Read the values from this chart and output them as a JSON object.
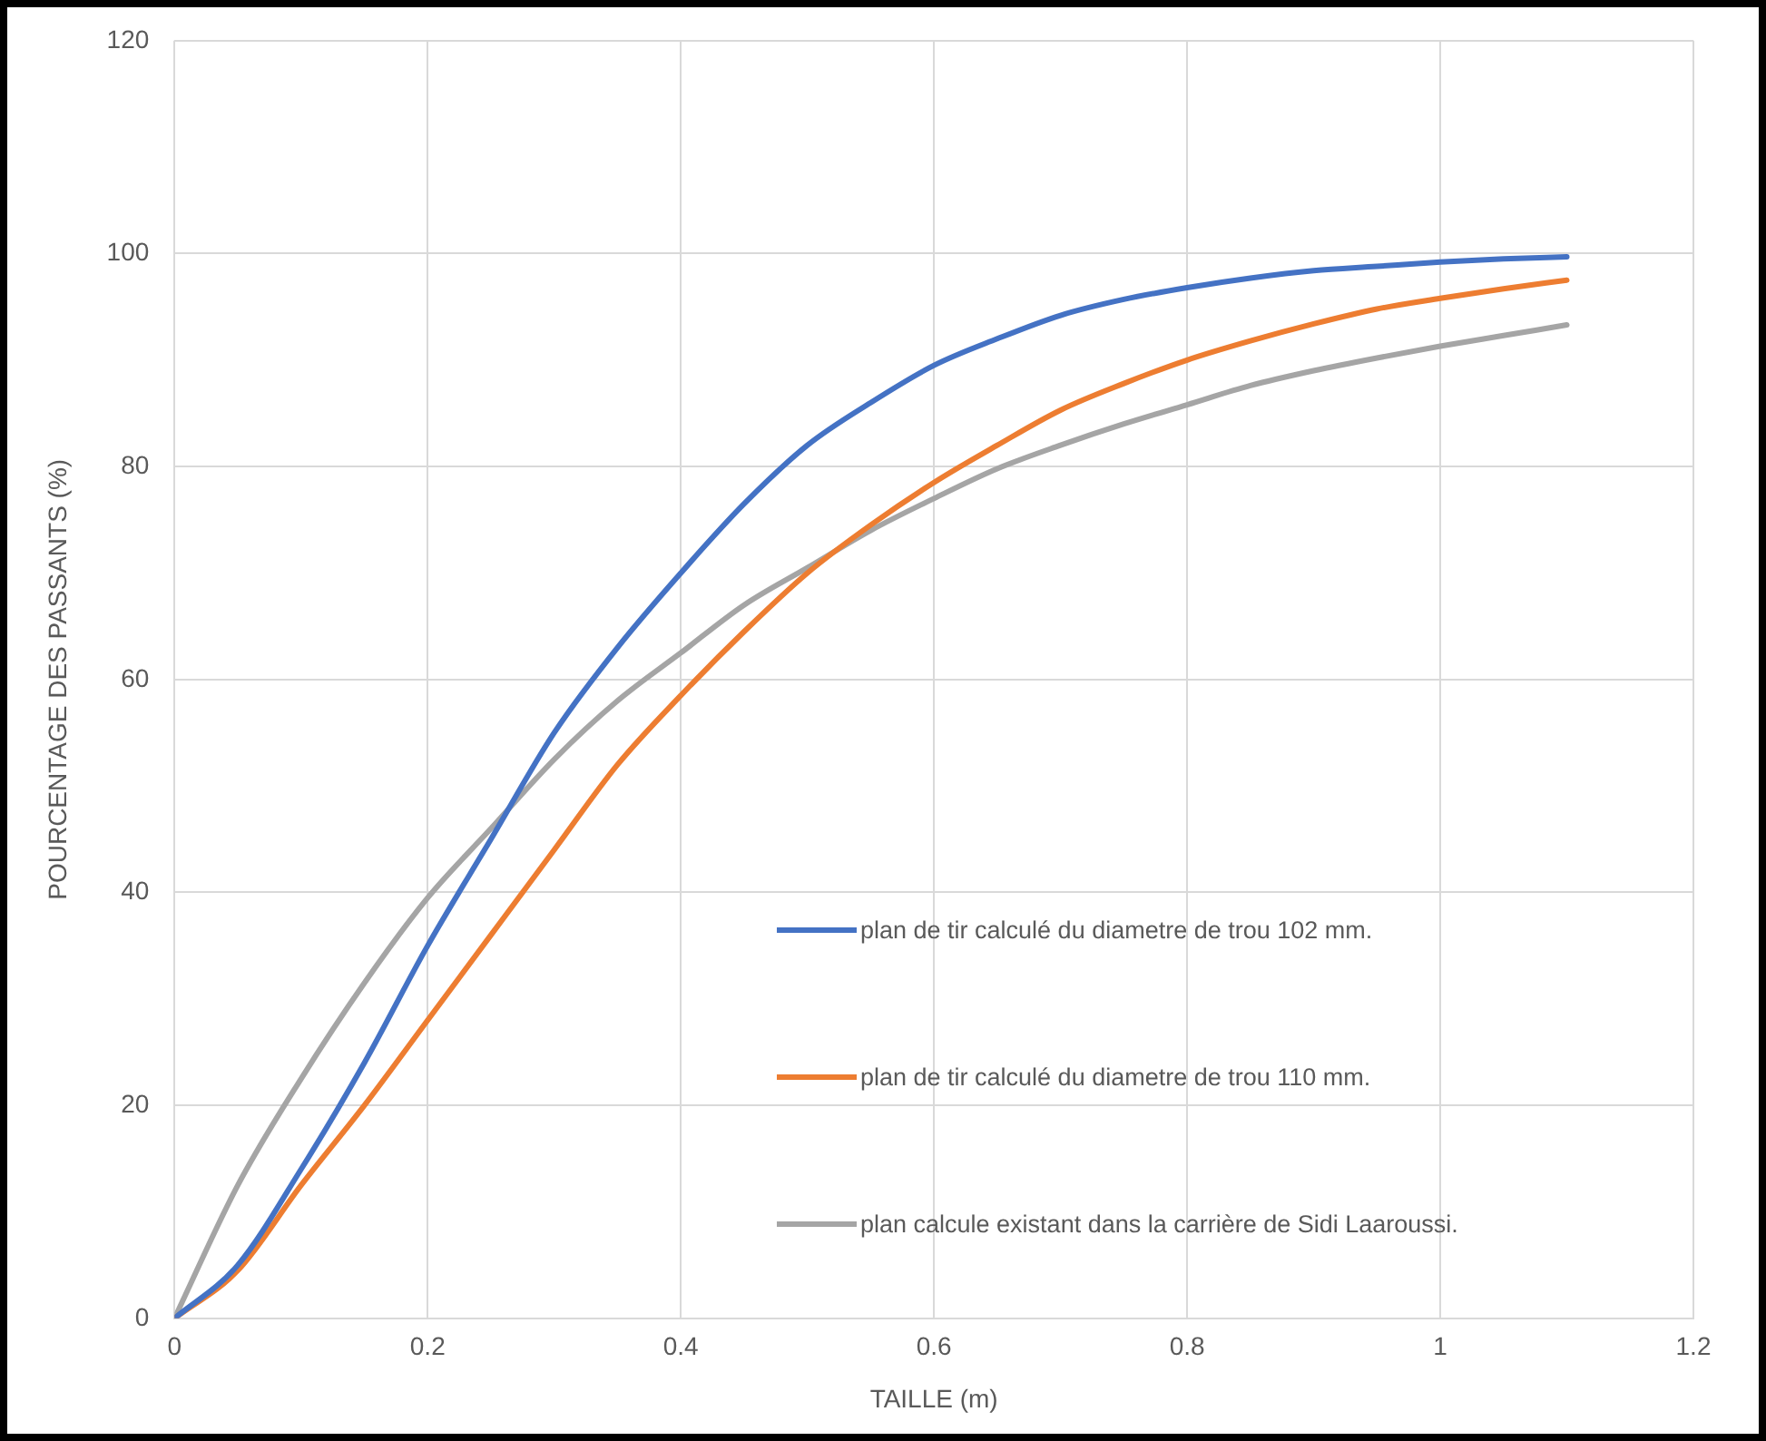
{
  "chart_data": {
    "type": "line",
    "xlabel": "TAILLE (m)",
    "ylabel": "POURCENTAGE DES PASSANTS (%)",
    "x": [
      0,
      0.05,
      0.1,
      0.15,
      0.2,
      0.25,
      0.3,
      0.35,
      0.4,
      0.45,
      0.5,
      0.55,
      0.6,
      0.65,
      0.7,
      0.75,
      0.8,
      0.85,
      0.9,
      0.95,
      1.0,
      1.05,
      1.1
    ],
    "series": [
      {
        "name": "plan de tir calculé du diametre de trou 102 mm.",
        "color": "#4472c4",
        "values": [
          0,
          5,
          14,
          24,
          35,
          45,
          55,
          63,
          70,
          76.5,
          82,
          86,
          89.5,
          92,
          94.2,
          95.7,
          96.8,
          97.7,
          98.4,
          98.8,
          99.2,
          99.5,
          99.7
        ]
      },
      {
        "name": "plan de tir calculé du diametre de trou 110 mm.",
        "color": "#ed7d31",
        "values": [
          0,
          4.5,
          12.5,
          20,
          28,
          36,
          44,
          52,
          58.5,
          64.5,
          70,
          74.5,
          78.5,
          82,
          85.3,
          87.8,
          90,
          91.8,
          93.4,
          94.8,
          95.8,
          96.7,
          97.5
        ]
      },
      {
        "name": "plan calcule existant dans la carrière de Sidi Laaroussi.",
        "color": "#a5a5a5",
        "values": [
          0,
          12.5,
          22.5,
          31.5,
          39.5,
          46,
          52.5,
          58,
          62.5,
          67,
          70.5,
          74,
          77,
          79.8,
          82,
          84,
          85.8,
          87.6,
          89,
          90.2,
          91.3,
          92.3,
          93.3
        ]
      }
    ],
    "xlim": [
      0,
      1.2
    ],
    "xticks": [
      0,
      0.2,
      0.4,
      0.6,
      0.8,
      1,
      1.2
    ],
    "ylim": [
      0,
      120
    ],
    "yticks": [
      0,
      20,
      40,
      60,
      80,
      100,
      120
    ],
    "grid": true,
    "legend": "right",
    "marker": "none",
    "line_style": "solid"
  }
}
